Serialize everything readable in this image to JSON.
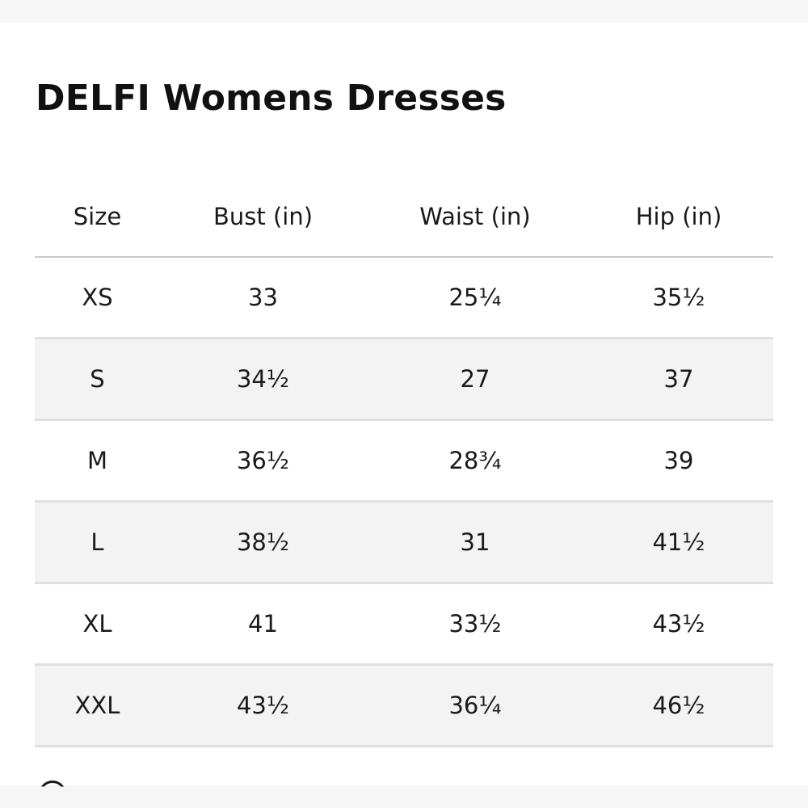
{
  "title": "DELFI Womens Dresses",
  "table": {
    "headers": [
      "Size",
      "Bust (in)",
      "Waist (in)",
      "Hip (in)"
    ],
    "rows": [
      [
        "XS",
        "33",
        "25¼",
        "35½"
      ],
      [
        "S",
        "34½",
        "27",
        "37"
      ],
      [
        "M",
        "36½",
        "28¾",
        "39"
      ],
      [
        "L",
        "38½",
        "31",
        "41½"
      ],
      [
        "XL",
        "41",
        "33½",
        "43½"
      ],
      [
        "XXL",
        "43½",
        "36¼",
        "46½"
      ]
    ]
  },
  "colors": {
    "text": "#1a1a1a",
    "header_rule": "#c9c9c9",
    "row_stripe": "#f3f3f3",
    "row_rule": "#e0e0e0"
  }
}
